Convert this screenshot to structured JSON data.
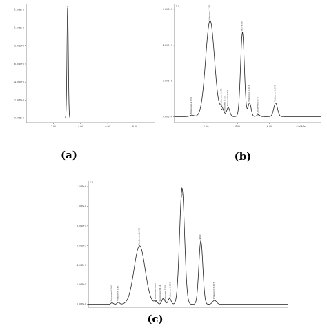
{
  "chart_data": [
    {
      "panel": "(a)",
      "type": "line",
      "xlabel": "",
      "ylabel": "",
      "x_ticks": [
        "2.00",
        "4.00",
        "6.00",
        "8.00"
      ],
      "y_ticks": [
        "0.00E+0",
        "2.00E+5",
        "4.00E+5",
        "6.00E+5",
        "8.00E+5",
        "1.00E+6",
        "1.20E+6"
      ],
      "xlim": [
        0,
        9.5
      ],
      "ylim": [
        -50000,
        1300000
      ],
      "peaks": [
        {
          "x": 3.05,
          "height": 1270000,
          "width": 0.05
        }
      ],
      "annotations": []
    },
    {
      "panel": "(b)",
      "type": "line",
      "xlabel": "",
      "ylabel": "",
      "axis_corner_label": "Y S",
      "x_unit_label": "8.00Min",
      "x_ticks": [
        "2.00",
        "4.00",
        "6.00",
        "8.00Min"
      ],
      "y_ticks": [
        "0.00E+0",
        "2.00E+5",
        "4.00E+5",
        "6.00E+5"
      ],
      "xlim": [
        0,
        9.3
      ],
      "ylim": [
        -40000,
        750000
      ],
      "peaks": [
        {
          "x": 1.1,
          "height": 10000,
          "width": 0.12
        },
        {
          "x": 2.25,
          "height": 640000,
          "width": 0.28
        },
        {
          "x": 3.0,
          "height": 50000,
          "width": 0.12
        },
        {
          "x": 3.4,
          "height": 60000,
          "width": 0.1
        },
        {
          "x": 4.3,
          "height": 560000,
          "width": 0.12
        },
        {
          "x": 4.75,
          "height": 90000,
          "width": 0.1
        },
        {
          "x": 5.3,
          "height": 12000,
          "width": 0.1
        },
        {
          "x": 6.4,
          "height": 90000,
          "width": 0.12
        }
      ],
      "annotations": [
        {
          "x": 1.1,
          "text": "Unknown 1.050"
        },
        {
          "x": 2.25,
          "text": "Unknown 2.258"
        },
        {
          "x": 3.0,
          "text": "Unknown 3.055"
        },
        {
          "x": 3.2,
          "text": "Unknown 3.151"
        },
        {
          "x": 3.4,
          "text": "Unknown 3.358"
        },
        {
          "x": 4.3,
          "text": "Sup 4.500"
        },
        {
          "x": 4.75,
          "text": "Unknown 4.913"
        },
        {
          "x": 5.3,
          "text": "Unknown 5.357"
        },
        {
          "x": 6.4,
          "text": "Unknown 6.670"
        }
      ]
    },
    {
      "panel": "(c)",
      "type": "line",
      "xlabel": "",
      "ylabel": "",
      "axis_corner_label": "Y S",
      "x_ticks": [],
      "y_ticks": [
        "0.00E+0",
        "2.00E+5",
        "4.00E+5",
        "6.00E+5",
        "8.00E+5",
        "1.00E+6",
        "1.20E+6"
      ],
      "xlim": [
        0,
        8
      ],
      "ylim": [
        -30000,
        1250000
      ],
      "peaks": [
        {
          "x": 0.95,
          "height": 15000,
          "width": 0.05
        },
        {
          "x": 1.2,
          "height": 20000,
          "width": 0.05
        },
        {
          "x": 2.05,
          "height": 590000,
          "width": 0.22
        },
        {
          "x": 2.7,
          "height": 30000,
          "width": 0.06
        },
        {
          "x": 3.0,
          "height": 60000,
          "width": 0.06
        },
        {
          "x": 3.25,
          "height": 60000,
          "width": 0.06
        },
        {
          "x": 3.75,
          "height": 1170000,
          "width": 0.1
        },
        {
          "x": 4.5,
          "height": 640000,
          "width": 0.08
        },
        {
          "x": 5.05,
          "height": 40000,
          "width": 0.08
        }
      ],
      "annotations": [
        {
          "x": 0.95,
          "text": "Unknown 1.050"
        },
        {
          "x": 1.2,
          "text": "Unknown 1.457"
        },
        {
          "x": 2.05,
          "text": "Unknown 2.258"
        },
        {
          "x": 2.7,
          "text": "Unknown 3.057"
        },
        {
          "x": 2.9,
          "text": "Unknown 3.151"
        },
        {
          "x": 3.1,
          "text": "Unknown 3.358"
        },
        {
          "x": 3.3,
          "text": "Unknown 3.508"
        },
        {
          "x": 3.75,
          "text": "Sup 4.500"
        },
        {
          "x": 4.5,
          "text": "4.913"
        },
        {
          "x": 5.05,
          "text": "Unknown 5.357"
        }
      ]
    }
  ],
  "labels": {
    "a": "(a)",
    "b": "(b)",
    "c": "(c)"
  }
}
